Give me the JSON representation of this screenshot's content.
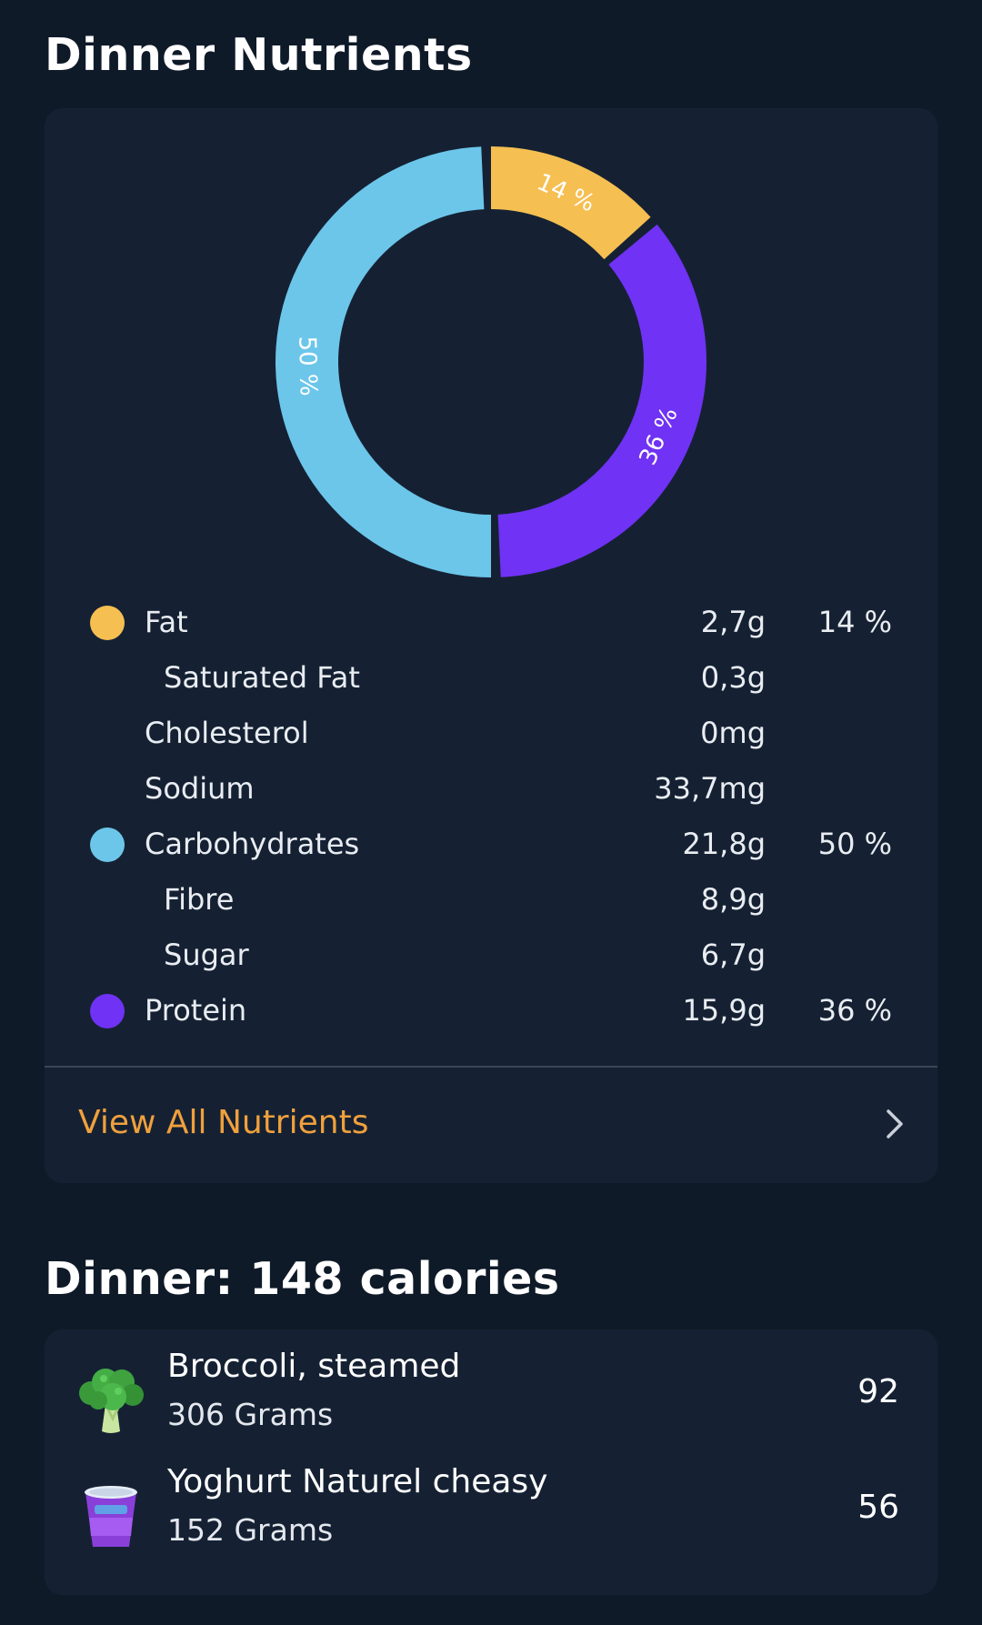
{
  "titles": {
    "nutrients": "Dinner Nutrients",
    "dinner": "Dinner: 148 calories"
  },
  "colors": {
    "background": "#0f1a28",
    "card": "#152133",
    "fat": "#f5bf52",
    "carbs": "#6cc6ea",
    "protein": "#7032f4",
    "link": "#f0a03c"
  },
  "chart_data": {
    "type": "pie",
    "style": "donut",
    "slices": [
      {
        "label": "Fat",
        "value": 14,
        "display": "14 %",
        "color": "#f5bf52"
      },
      {
        "label": "Protein",
        "value": 36,
        "display": "36 %",
        "color": "#7032f4"
      },
      {
        "label": "Carbohydrates",
        "value": 50,
        "display": "50 %",
        "color": "#6cc6ea"
      }
    ]
  },
  "nutrients": {
    "fat": {
      "label": "Fat",
      "amount": "2,7g",
      "percent": "14 %",
      "color": "#f5bf52"
    },
    "saturated_fat": {
      "label": "Saturated Fat",
      "amount": "0,3g"
    },
    "cholesterol": {
      "label": "Cholesterol",
      "amount": "0mg"
    },
    "sodium": {
      "label": "Sodium",
      "amount": "33,7mg"
    },
    "carbohydrates": {
      "label": "Carbohydrates",
      "amount": "21,8g",
      "percent": "50 %",
      "color": "#6cc6ea"
    },
    "fibre": {
      "label": "Fibre",
      "amount": "8,9g"
    },
    "sugar": {
      "label": "Sugar",
      "amount": "6,7g"
    },
    "protein": {
      "label": "Protein",
      "amount": "15,9g",
      "percent": "36 %",
      "color": "#7032f4"
    }
  },
  "view_all": {
    "label": "View All Nutrients",
    "icon": "chevron-right-icon"
  },
  "foods": [
    {
      "name": "Broccoli, steamed",
      "quantity": "306 Grams",
      "calories": "92",
      "icon": "broccoli-icon"
    },
    {
      "name": "Yoghurt Naturel cheasy",
      "quantity": "152 Grams",
      "calories": "56",
      "icon": "yoghurt-icon"
    }
  ]
}
